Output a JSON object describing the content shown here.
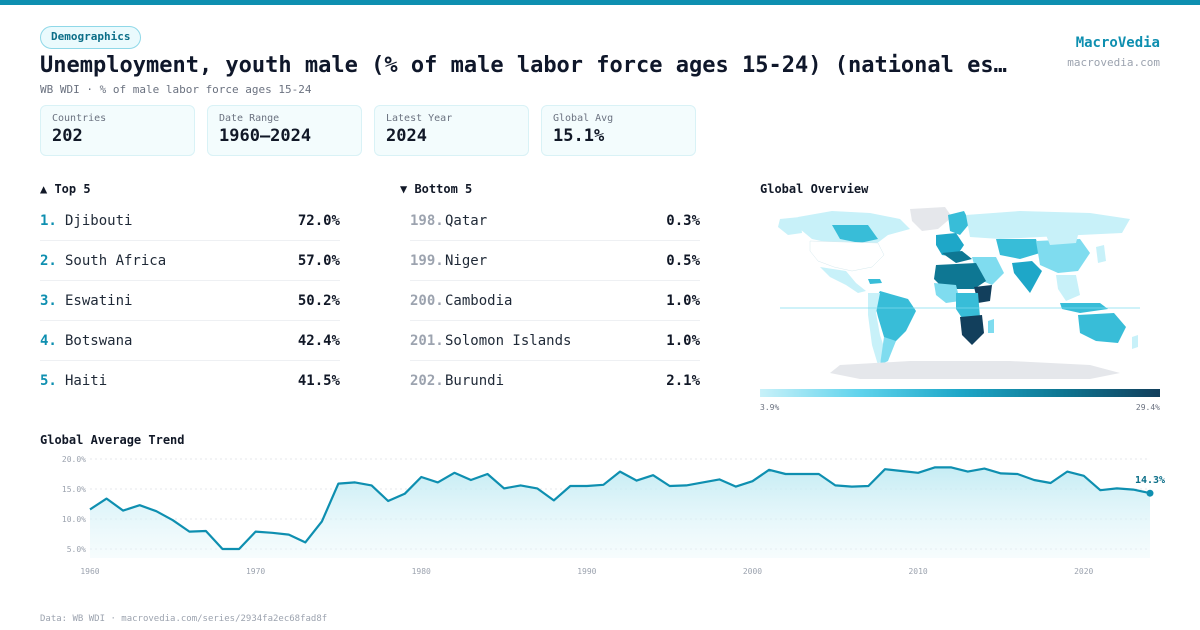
{
  "header": {
    "badge": "Demographics",
    "title": "Unemployment, youth male (% of male labor force ages 15-24) (national es…",
    "subtitle": "WB WDI · % of male labor force ages 15-24",
    "brand_name": "MacroVedia",
    "brand_url": "macrovedia.com"
  },
  "stats": [
    {
      "label": "Countries",
      "value": "202"
    },
    {
      "label": "Date Range",
      "value": "1960–2024"
    },
    {
      "label": "Latest Year",
      "value": "2024"
    },
    {
      "label": "Global Avg",
      "value": "15.1%"
    }
  ],
  "top5": {
    "heading": "▲ Top 5",
    "items": [
      {
        "rank": "1.",
        "name": "Djibouti",
        "value": "72.0%"
      },
      {
        "rank": "2.",
        "name": "South Africa",
        "value": "57.0%"
      },
      {
        "rank": "3.",
        "name": "Eswatini",
        "value": "50.2%"
      },
      {
        "rank": "4.",
        "name": "Botswana",
        "value": "42.4%"
      },
      {
        "rank": "5.",
        "name": "Haiti",
        "value": "41.5%"
      }
    ]
  },
  "bottom5": {
    "heading": "▼ Bottom 5",
    "items": [
      {
        "rank": "198.",
        "name": "Qatar",
        "value": "0.3%"
      },
      {
        "rank": "199.",
        "name": "Niger",
        "value": "0.5%"
      },
      {
        "rank": "200.",
        "name": "Cambodia",
        "value": "1.0%"
      },
      {
        "rank": "201.",
        "name": "Solomon Islands",
        "value": "1.0%"
      },
      {
        "rank": "202.",
        "name": "Burundi",
        "value": "2.1%"
      }
    ]
  },
  "map": {
    "heading": "Global Overview",
    "legend_min": "3.9%",
    "legend_max": "29.4%",
    "colors": {
      "land_nodata": "#e5e7eb",
      "low": "#c8f1f9",
      "mid": "#38bdd8",
      "high": "#123f5c",
      "ocean": "#ffffff"
    }
  },
  "trend": {
    "heading": "Global Average Trend",
    "last_label": "14.3%"
  },
  "footer": "Data: WB WDI · macrovedia.com/series/2934fa2ec68fad8f",
  "chart_data": {
    "type": "area",
    "title": "Global Average Trend",
    "xlabel": "",
    "ylabel": "",
    "x": [
      1960,
      1961,
      1962,
      1963,
      1964,
      1965,
      1966,
      1967,
      1968,
      1969,
      1970,
      1971,
      1972,
      1973,
      1974,
      1975,
      1976,
      1977,
      1978,
      1979,
      1980,
      1981,
      1982,
      1983,
      1984,
      1985,
      1986,
      1987,
      1988,
      1989,
      1990,
      1991,
      1992,
      1993,
      1994,
      1995,
      1996,
      1997,
      1998,
      1999,
      2000,
      2001,
      2002,
      2003,
      2004,
      2005,
      2006,
      2007,
      2008,
      2009,
      2010,
      2011,
      2012,
      2013,
      2014,
      2015,
      2016,
      2017,
      2018,
      2019,
      2020,
      2021,
      2022,
      2023,
      2024
    ],
    "values": [
      11.6,
      13.4,
      11.4,
      12.3,
      11.3,
      9.8,
      7.9,
      8.0,
      5.0,
      5.0,
      7.9,
      7.7,
      7.4,
      6.1,
      9.6,
      15.9,
      16.1,
      15.6,
      13.0,
      14.2,
      17.0,
      16.1,
      17.7,
      16.5,
      17.5,
      15.1,
      15.6,
      15.1,
      13.1,
      15.5,
      15.5,
      15.7,
      17.9,
      16.4,
      17.3,
      15.5,
      15.6,
      16.1,
      16.6,
      15.4,
      16.3,
      18.2,
      17.5,
      17.5,
      17.5,
      15.6,
      15.4,
      15.5,
      18.3,
      18.0,
      17.7,
      18.6,
      18.6,
      17.9,
      18.4,
      17.6,
      17.5,
      16.5,
      16.0,
      17.9,
      17.2,
      14.8,
      15.1,
      14.9,
      14.3
    ],
    "ylim": [
      3.5,
      20.5
    ],
    "yticks": [
      "5.0%",
      "10.0%",
      "15.0%",
      "20.0%"
    ],
    "ytick_values": [
      5,
      10,
      15,
      20
    ],
    "xticks": [
      "1960",
      "1970",
      "1980",
      "1990",
      "2000",
      "2010",
      "2020"
    ],
    "xtick_values": [
      1960,
      1970,
      1980,
      1990,
      2000,
      2010,
      2020
    ],
    "grid": true,
    "color": "#0e8fb0"
  }
}
